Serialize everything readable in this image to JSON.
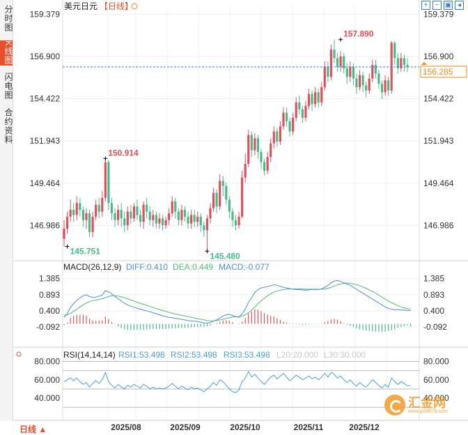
{
  "sidebar": {
    "tabs": [
      {
        "label": "分时图",
        "active": false
      },
      {
        "label": "K线图",
        "active": true
      },
      {
        "label": "闪电图",
        "active": false
      },
      {
        "label": "合约资料",
        "active": false
      }
    ]
  },
  "header": {
    "symbol": "美元日元",
    "period_tag": "【日线】",
    "icon": "zoom-circle-icon"
  },
  "toolbar": {
    "buttons": [
      "expand-icon",
      "collapse-icon",
      "chart-type-icon",
      "back-icon"
    ]
  },
  "footer": {
    "period_button": "日线 ▲"
  },
  "watermark": {
    "text": "汇金网",
    "sub": "www.gold678.com"
  },
  "colors": {
    "up": "#e0505a",
    "down": "#4cb98a",
    "diff": "#4c8fd6",
    "dea": "#56b87a",
    "rsi1": "#4c9fd6",
    "rsi2": "#4c9fd6",
    "rsi3": "#4c9fd6",
    "current": "#e88a1c"
  },
  "chart_data": [
    {
      "type": "candlestick",
      "panel": "price",
      "x_labels": [
        "2025/08",
        "2025/09",
        "2025/10",
        "2025/11",
        "2025/12"
      ],
      "ytick_labels": [
        "159.379",
        "156.900",
        "154.422",
        "151.943",
        "149.464",
        "146.986"
      ],
      "yticks": [
        159.379,
        156.9,
        154.422,
        151.943,
        149.464,
        146.986
      ],
      "ylim": [
        145.0,
        159.8
      ],
      "current_price": 156.285,
      "current_price_label": "156.285",
      "annotations": [
        {
          "label": "150.914",
          "value": 150.914,
          "bar": 13,
          "kind": "high"
        },
        {
          "label": "145.751",
          "value": 145.751,
          "bar": 1,
          "kind": "low"
        },
        {
          "label": "145.480",
          "value": 145.48,
          "bar": 45,
          "kind": "low"
        },
        {
          "label": "157.890",
          "value": 157.89,
          "bar": 87,
          "kind": "high"
        }
      ],
      "candles": [
        [
          146.2,
          146.8,
          147.3,
          145.751
        ],
        [
          146.8,
          147.5,
          147.8,
          146.5
        ],
        [
          147.5,
          147.9,
          148.5,
          147.2
        ],
        [
          147.9,
          147.6,
          148.3,
          147.2
        ],
        [
          147.6,
          148.3,
          148.7,
          147.3
        ],
        [
          148.3,
          147.9,
          148.6,
          147.5
        ],
        [
          147.9,
          147.3,
          148.1,
          146.9
        ],
        [
          147.3,
          147.7,
          148.0,
          146.8
        ],
        [
          147.7,
          146.6,
          147.9,
          146.3
        ],
        [
          146.6,
          147.5,
          147.8,
          146.3
        ],
        [
          147.5,
          148.2,
          148.5,
          147.3
        ],
        [
          148.2,
          147.8,
          148.6,
          147.4
        ],
        [
          147.8,
          148.6,
          149.0,
          147.5
        ],
        [
          148.6,
          150.7,
          150.914,
          148.4
        ],
        [
          150.7,
          148.3,
          150.8,
          147.9
        ],
        [
          148.3,
          147.7,
          148.6,
          147.3
        ],
        [
          147.7,
          147.3,
          148.0,
          146.9
        ],
        [
          147.3,
          147.9,
          148.2,
          147.0
        ],
        [
          147.9,
          147.4,
          148.3,
          146.9
        ],
        [
          147.4,
          147.0,
          147.8,
          146.6
        ],
        [
          147.0,
          147.8,
          148.1,
          146.7
        ],
        [
          147.8,
          147.4,
          148.2,
          147.1
        ],
        [
          147.4,
          148.1,
          148.3,
          147.2
        ],
        [
          148.1,
          147.6,
          148.5,
          147.3
        ],
        [
          147.6,
          147.2,
          147.9,
          146.9
        ],
        [
          147.2,
          148.2,
          148.4,
          146.8
        ],
        [
          148.2,
          147.8,
          148.6,
          147.4
        ],
        [
          147.8,
          147.3,
          148.1,
          147.0
        ],
        [
          147.3,
          147.6,
          147.9,
          146.9
        ],
        [
          147.6,
          147.1,
          147.8,
          146.8
        ],
        [
          147.1,
          147.4,
          147.7,
          146.8
        ],
        [
          147.4,
          147.0,
          147.6,
          146.7
        ],
        [
          147.0,
          147.3,
          147.5,
          146.8
        ],
        [
          147.3,
          147.7,
          148.0,
          147.0
        ],
        [
          147.7,
          148.4,
          148.7,
          147.5
        ],
        [
          148.4,
          147.8,
          148.6,
          147.4
        ],
        [
          147.8,
          147.3,
          148.0,
          147.0
        ],
        [
          147.3,
          147.9,
          148.2,
          147.0
        ],
        [
          147.9,
          147.5,
          148.1,
          147.2
        ],
        [
          147.5,
          147.1,
          147.8,
          146.8
        ],
        [
          147.1,
          147.6,
          147.9,
          146.8
        ],
        [
          147.6,
          147.2,
          147.9,
          146.9
        ],
        [
          147.2,
          147.5,
          147.8,
          146.9
        ],
        [
          147.5,
          147.0,
          147.7,
          146.6
        ],
        [
          147.0,
          146.7,
          147.2,
          146.3
        ],
        [
          146.7,
          147.4,
          147.6,
          145.48
        ],
        [
          147.4,
          148.0,
          148.3,
          147.1
        ],
        [
          148.0,
          148.9,
          149.2,
          147.8
        ],
        [
          148.9,
          148.1,
          149.1,
          147.7
        ],
        [
          148.1,
          149.6,
          150.0,
          147.9
        ],
        [
          149.6,
          149.3,
          149.9,
          148.7
        ],
        [
          149.3,
          148.5,
          149.5,
          148.2
        ],
        [
          148.5,
          147.8,
          148.7,
          147.4
        ],
        [
          147.8,
          147.3,
          148.0,
          146.9
        ],
        [
          147.3,
          147.0,
          147.6,
          146.7
        ],
        [
          147.0,
          147.5,
          147.8,
          146.8
        ],
        [
          147.5,
          149.8,
          150.2,
          147.4
        ],
        [
          149.8,
          150.6,
          151.2,
          149.5
        ],
        [
          150.6,
          152.3,
          152.6,
          150.4
        ],
        [
          152.3,
          151.4,
          152.5,
          151.0
        ],
        [
          151.4,
          152.1,
          152.4,
          151.1
        ],
        [
          152.1,
          151.3,
          152.3,
          150.9
        ],
        [
          151.3,
          150.7,
          151.5,
          150.3
        ],
        [
          150.7,
          150.2,
          150.9,
          149.9
        ],
        [
          150.2,
          151.0,
          151.3,
          150.0
        ],
        [
          151.0,
          151.8,
          152.1,
          150.7
        ],
        [
          151.8,
          152.5,
          152.8,
          151.5
        ],
        [
          152.5,
          151.9,
          152.7,
          151.6
        ],
        [
          151.9,
          152.8,
          153.1,
          151.7
        ],
        [
          152.8,
          153.6,
          153.9,
          152.6
        ],
        [
          153.6,
          153.1,
          153.9,
          152.8
        ],
        [
          153.1,
          152.5,
          153.3,
          152.2
        ],
        [
          152.5,
          153.3,
          153.6,
          152.3
        ],
        [
          153.3,
          154.2,
          154.5,
          153.1
        ],
        [
          154.2,
          153.8,
          154.6,
          153.5
        ],
        [
          153.8,
          153.3,
          154.0,
          153.0
        ],
        [
          153.3,
          154.0,
          154.3,
          153.1
        ],
        [
          154.0,
          154.7,
          155.0,
          153.8
        ],
        [
          154.7,
          154.1,
          154.9,
          153.7
        ],
        [
          154.1,
          154.8,
          155.1,
          153.9
        ],
        [
          154.8,
          154.2,
          155.0,
          153.9
        ],
        [
          154.2,
          155.1,
          155.4,
          154.0
        ],
        [
          155.1,
          156.3,
          156.6,
          154.9
        ],
        [
          156.3,
          155.7,
          156.6,
          155.4
        ],
        [
          155.7,
          157.3,
          157.6,
          155.5
        ],
        [
          157.3,
          156.8,
          157.89,
          156.5
        ],
        [
          156.8,
          156.3,
          157.1,
          156.0
        ],
        [
          156.3,
          156.9,
          157.2,
          156.0
        ],
        [
          156.9,
          156.2,
          157.1,
          155.9
        ],
        [
          156.2,
          155.7,
          156.5,
          155.3
        ],
        [
          155.7,
          156.3,
          156.6,
          155.4
        ],
        [
          156.3,
          155.6,
          156.5,
          155.2
        ],
        [
          155.6,
          155.1,
          155.9,
          154.7
        ],
        [
          155.1,
          155.8,
          156.1,
          154.9
        ],
        [
          155.8,
          155.2,
          156.0,
          154.8
        ],
        [
          155.2,
          154.9,
          155.4,
          154.5
        ],
        [
          154.9,
          155.6,
          155.9,
          154.7
        ],
        [
          155.6,
          156.4,
          156.7,
          155.4
        ],
        [
          156.4,
          155.9,
          156.7,
          155.6
        ],
        [
          155.9,
          155.3,
          156.1,
          155.0
        ],
        [
          155.3,
          154.8,
          155.5,
          154.4
        ],
        [
          154.8,
          155.5,
          155.8,
          154.6
        ],
        [
          155.5,
          154.9,
          155.7,
          154.6
        ],
        [
          154.9,
          157.7,
          157.8,
          154.7
        ],
        [
          157.7,
          156.8,
          157.8,
          156.4
        ],
        [
          156.8,
          156.2,
          157.1,
          155.9
        ],
        [
          156.2,
          156.8,
          157.1,
          156.0
        ],
        [
          156.8,
          156.4,
          157.0,
          156.0
        ],
        [
          156.4,
          156.285,
          156.8,
          156.0
        ]
      ]
    },
    {
      "type": "bar_line",
      "panel": "macd",
      "title": "MACD(26,12,9)",
      "legend": [
        {
          "label": "DIFF:0.410",
          "series": "diff"
        },
        {
          "label": "DEA:0.449",
          "series": "dea"
        },
        {
          "label": "MACD:-0.077",
          "series": "macd"
        }
      ],
      "ytick_labels": [
        "1.385",
        "0.893",
        "0.400",
        "-0.092"
      ],
      "yticks": [
        1.385,
        0.893,
        0.4,
        -0.092
      ],
      "ylim": [
        -0.65,
        1.55
      ],
      "diff": [
        0.2,
        0.32,
        0.5,
        0.62,
        0.72,
        0.8,
        0.86,
        0.89,
        0.84,
        0.81,
        0.82,
        0.85,
        0.88,
        1.02,
        0.98,
        0.92,
        0.84,
        0.77,
        0.7,
        0.63,
        0.58,
        0.54,
        0.51,
        0.48,
        0.45,
        0.42,
        0.4,
        0.37,
        0.34,
        0.31,
        0.28,
        0.25,
        0.22,
        0.2,
        0.19,
        0.17,
        0.15,
        0.14,
        0.12,
        0.1,
        0.09,
        0.08,
        0.07,
        0.05,
        0.03,
        0.02,
        0.04,
        0.08,
        0.12,
        0.18,
        0.24,
        0.28,
        0.29,
        0.26,
        0.22,
        0.2,
        0.31,
        0.45,
        0.66,
        0.8,
        0.96,
        1.05,
        1.1,
        1.12,
        1.14,
        1.17,
        1.2,
        1.18,
        1.15,
        1.12,
        1.1,
        1.08,
        1.06,
        1.05,
        1.05,
        1.04,
        1.03,
        1.04,
        1.05,
        1.05,
        1.05,
        1.07,
        1.12,
        1.18,
        1.26,
        1.31,
        1.33,
        1.3,
        1.26,
        1.22,
        1.18,
        1.12,
        1.06,
        1.0,
        0.94,
        0.88,
        0.82,
        0.76,
        0.7,
        0.64,
        0.58,
        0.52,
        0.48,
        0.45,
        0.43,
        0.44,
        0.42,
        0.42,
        0.41,
        0.41
      ],
      "dea": [
        0.25,
        0.28,
        0.32,
        0.38,
        0.45,
        0.52,
        0.58,
        0.64,
        0.68,
        0.71,
        0.73,
        0.75,
        0.77,
        0.8,
        0.84,
        0.86,
        0.86,
        0.85,
        0.83,
        0.8,
        0.77,
        0.73,
        0.7,
        0.66,
        0.63,
        0.6,
        0.57,
        0.53,
        0.5,
        0.47,
        0.44,
        0.41,
        0.38,
        0.35,
        0.33,
        0.3,
        0.28,
        0.26,
        0.24,
        0.22,
        0.2,
        0.18,
        0.16,
        0.14,
        0.12,
        0.1,
        0.09,
        0.09,
        0.1,
        0.12,
        0.14,
        0.17,
        0.19,
        0.21,
        0.22,
        0.22,
        0.24,
        0.28,
        0.34,
        0.42,
        0.52,
        0.62,
        0.71,
        0.79,
        0.86,
        0.92,
        0.97,
        1.01,
        1.03,
        1.05,
        1.06,
        1.07,
        1.07,
        1.07,
        1.07,
        1.07,
        1.06,
        1.06,
        1.06,
        1.06,
        1.06,
        1.06,
        1.07,
        1.09,
        1.12,
        1.16,
        1.2,
        1.22,
        1.24,
        1.25,
        1.24,
        1.22,
        1.2,
        1.17,
        1.13,
        1.09,
        1.04,
        0.99,
        0.94,
        0.88,
        0.82,
        0.76,
        0.7,
        0.65,
        0.6,
        0.56,
        0.52,
        0.49,
        0.46,
        0.449
      ],
      "macd": [
        -0.05,
        0.04,
        0.18,
        0.24,
        0.27,
        0.28,
        0.28,
        0.25,
        0.16,
        0.1,
        0.09,
        0.1,
        0.11,
        0.22,
        0.14,
        0.06,
        -0.02,
        -0.08,
        -0.13,
        -0.17,
        -0.19,
        -0.19,
        -0.19,
        -0.18,
        -0.18,
        -0.18,
        -0.17,
        -0.16,
        -0.16,
        -0.16,
        -0.16,
        -0.16,
        -0.16,
        -0.15,
        -0.14,
        -0.13,
        -0.13,
        -0.12,
        -0.12,
        -0.12,
        -0.11,
        -0.1,
        -0.09,
        -0.09,
        -0.09,
        -0.08,
        -0.05,
        -0.01,
        0.02,
        0.06,
        0.1,
        0.11,
        0.1,
        0.05,
        0.0,
        -0.02,
        0.07,
        0.17,
        0.32,
        0.38,
        0.44,
        0.43,
        0.39,
        0.33,
        0.28,
        0.25,
        0.23,
        0.17,
        0.12,
        0.07,
        0.04,
        0.01,
        -0.01,
        -0.02,
        -0.02,
        -0.03,
        -0.03,
        -0.02,
        -0.01,
        -0.01,
        -0.01,
        0.01,
        0.05,
        0.09,
        0.14,
        0.15,
        0.13,
        0.08,
        0.02,
        -0.03,
        -0.06,
        -0.1,
        -0.14,
        -0.17,
        -0.19,
        -0.21,
        -0.22,
        -0.23,
        -0.24,
        -0.24,
        -0.24,
        -0.24,
        -0.22,
        -0.2,
        -0.17,
        -0.12,
        -0.1,
        -0.07,
        -0.05,
        -0.077
      ]
    },
    {
      "type": "line",
      "panel": "rsi",
      "title": "RSI(14,14,14)",
      "legend": [
        {
          "label": "RSI1:53.498",
          "series": "rsi1"
        },
        {
          "label": "RSI2:53.498",
          "series": "rsi2"
        },
        {
          "label": "RSI3:53.498",
          "series": "rsi3"
        },
        {
          "label": "L20:20.000",
          "series": "l20"
        },
        {
          "label": "L30:30.000",
          "series": "l30"
        }
      ],
      "ytick_labels": [
        "80.000",
        "60.000",
        "40.000"
      ],
      "yticks": [
        80,
        60,
        40
      ],
      "ylim": [
        18,
        88
      ],
      "reference_lines": [
        80,
        70,
        50,
        30
      ],
      "rsi": [
        58,
        60,
        62,
        59,
        62,
        58,
        55,
        57,
        52,
        56,
        59,
        56,
        60,
        68,
        58,
        54,
        51,
        55,
        52,
        50,
        54,
        52,
        55,
        53,
        51,
        55,
        53,
        50,
        52,
        50,
        51,
        50,
        51,
        53,
        56,
        53,
        50,
        53,
        51,
        49,
        52,
        50,
        51,
        49,
        47,
        50,
        53,
        57,
        54,
        60,
        58,
        54,
        50,
        47,
        46,
        49,
        58,
        62,
        69,
        63,
        66,
        62,
        58,
        55,
        59,
        63,
        65,
        61,
        64,
        67,
        63,
        59,
        62,
        65,
        63,
        60,
        62,
        64,
        61,
        63,
        60,
        63,
        67,
        63,
        68,
        66,
        62,
        64,
        60,
        57,
        60,
        56,
        53,
        57,
        54,
        52,
        56,
        60,
        57,
        54,
        51,
        55,
        52,
        62,
        58,
        55,
        58,
        56,
        53.498,
        53.498
      ]
    }
  ]
}
